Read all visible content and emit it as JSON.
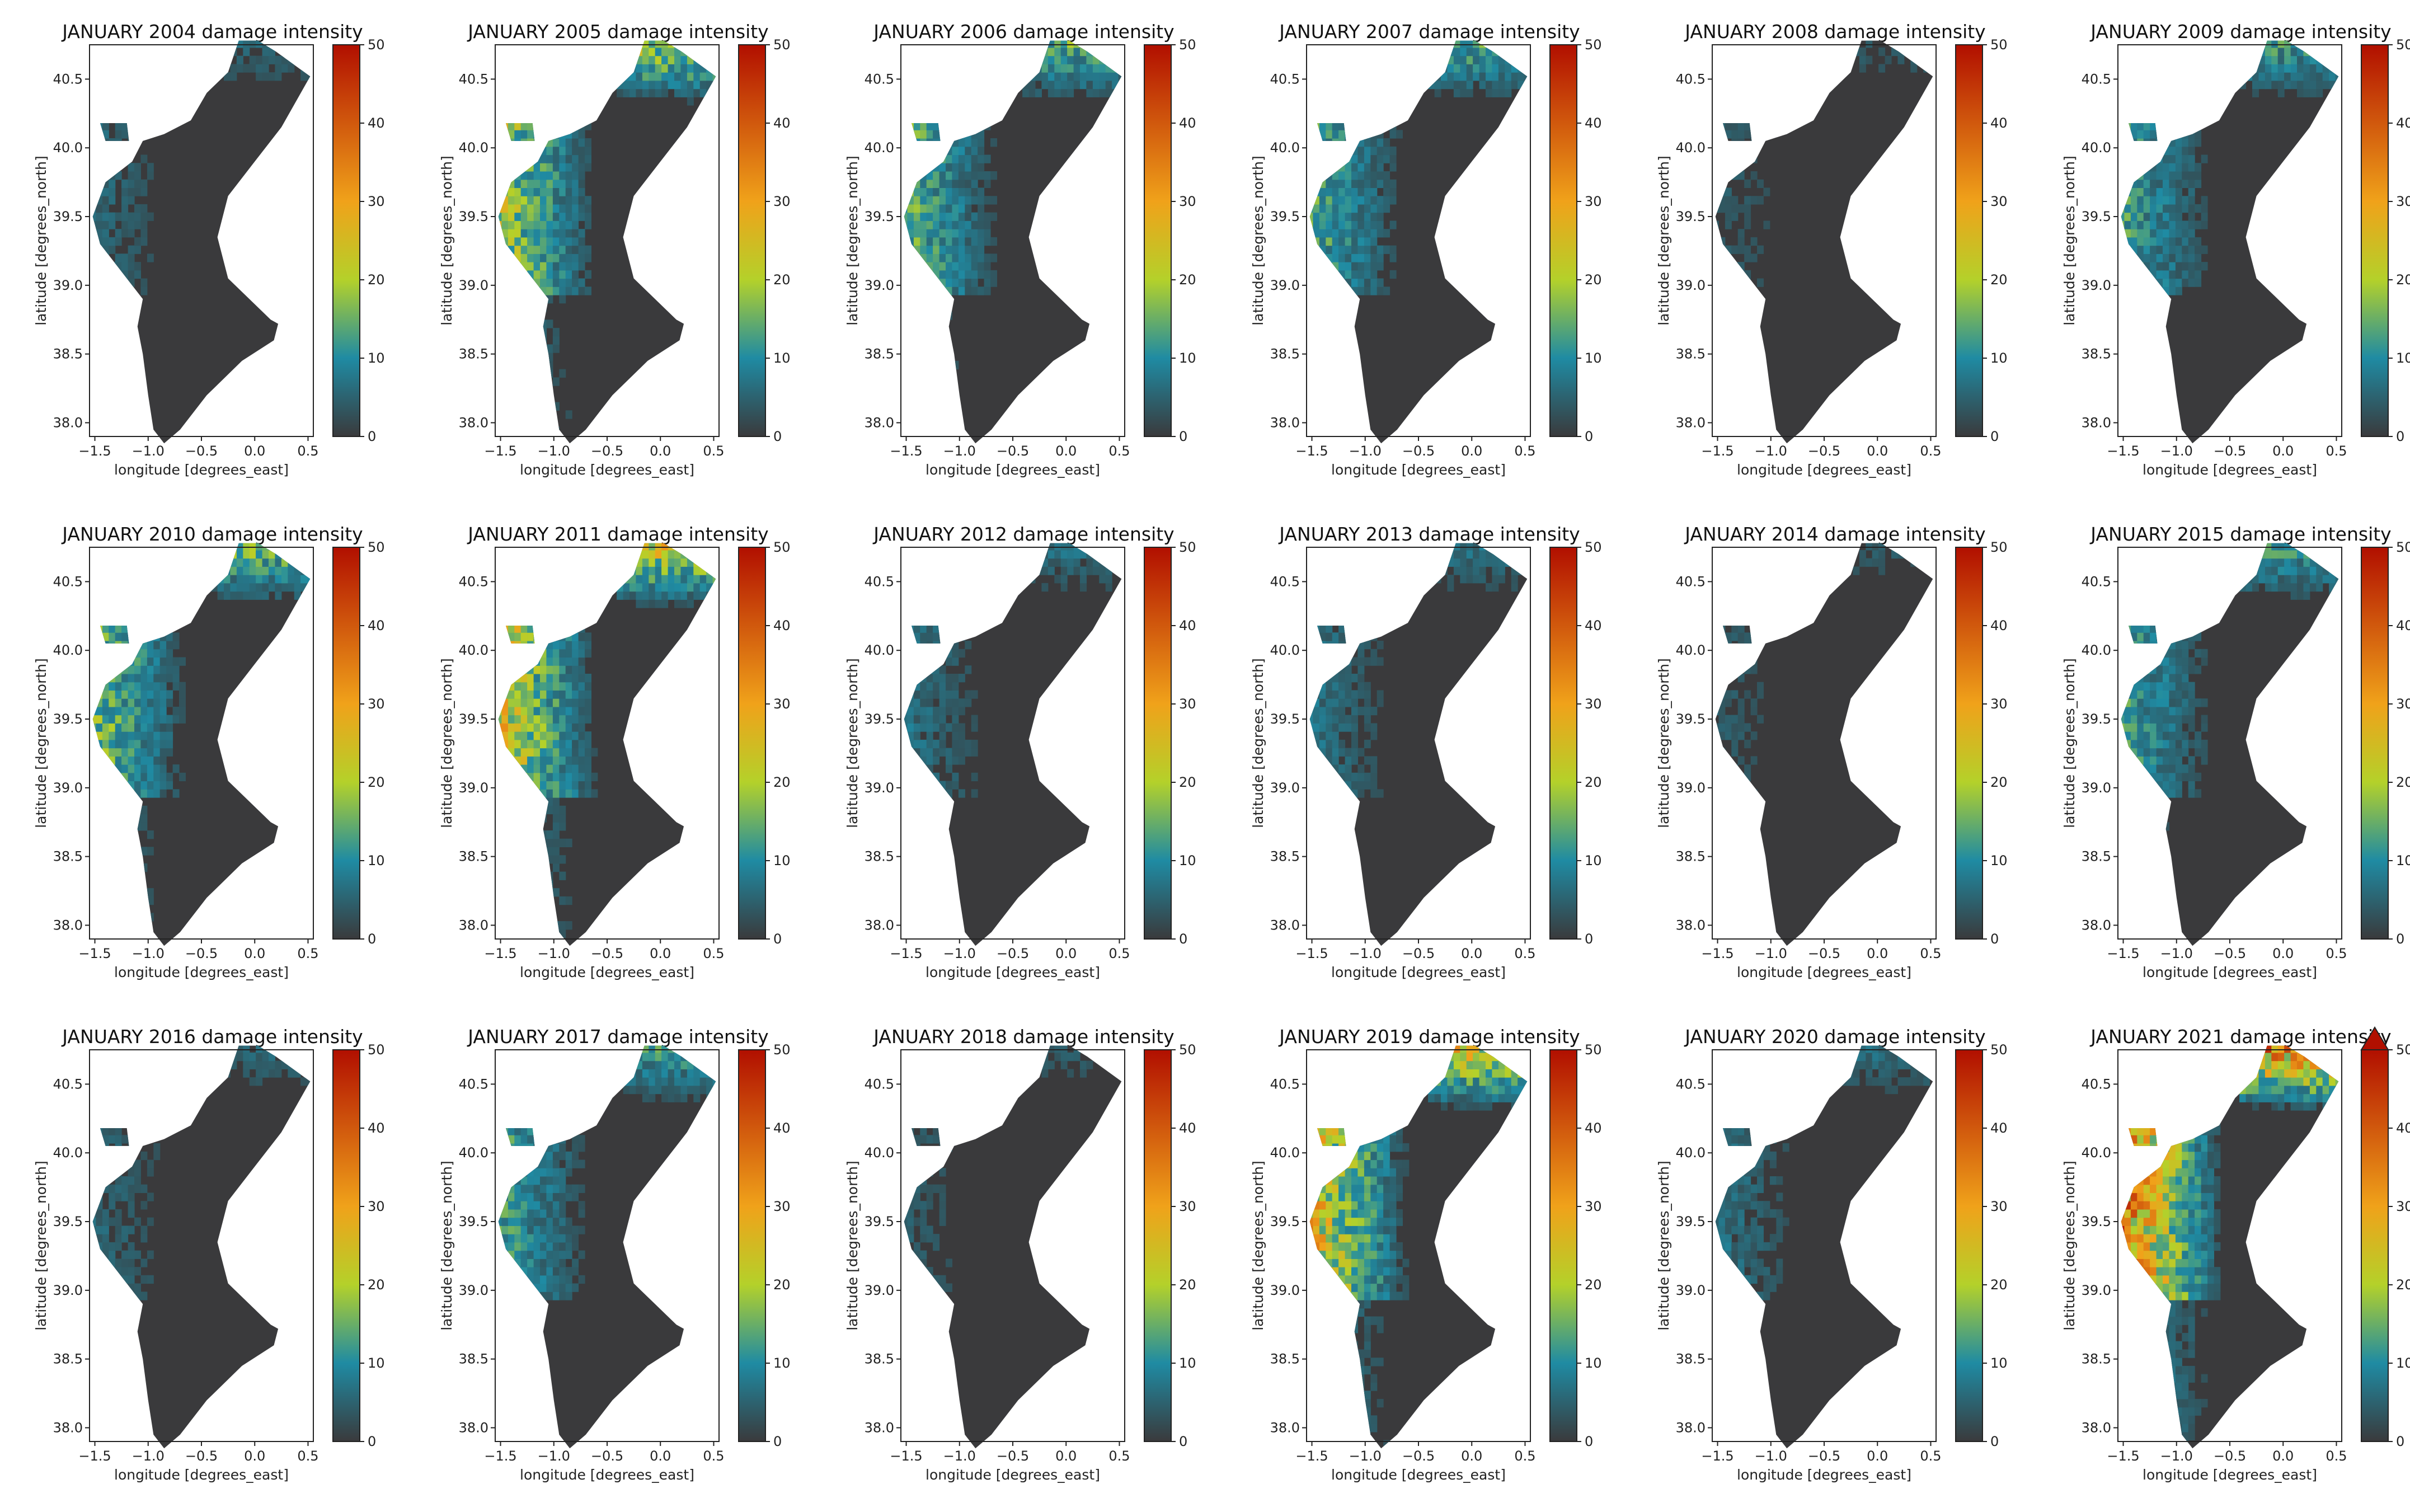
{
  "figure": {
    "panel_title_suffix": "damage intensity",
    "xlabel": "longitude [degrees_east]",
    "ylabel": "latitude [degrees_north]",
    "x_ticks": [
      "−1.5",
      "−1.0",
      "−0.5",
      "0.0",
      "0.5"
    ],
    "y_ticks": [
      "38.0",
      "38.5",
      "39.0",
      "39.5",
      "40.0",
      "40.5"
    ],
    "colorbar_ticks": [
      "0",
      "10",
      "20",
      "30",
      "40",
      "50"
    ]
  },
  "map_data": {
    "type": "choropleth-grid",
    "variable": "damage intensity",
    "month": "JANUARY",
    "xlim": [
      -1.55,
      0.55
    ],
    "ylim": [
      37.9,
      40.75
    ],
    "colorbar": {
      "min": 0,
      "max": 50,
      "stops": [
        "#3a3a3c",
        "#1f8ba3",
        "#b4d12a",
        "#f0a21a",
        "#b10f00"
      ]
    },
    "panels": [
      {
        "title": "JANUARY 2004 damage intensity",
        "year": 2004,
        "max_intensity": 8
      },
      {
        "title": "JANUARY 2005 damage intensity",
        "year": 2005,
        "max_intensity": 30
      },
      {
        "title": "JANUARY 2006 damage intensity",
        "year": 2006,
        "max_intensity": 22
      },
      {
        "title": "JANUARY 2007 damage intensity",
        "year": 2007,
        "max_intensity": 20
      },
      {
        "title": "JANUARY 2008 damage intensity",
        "year": 2008,
        "max_intensity": 6
      },
      {
        "title": "JANUARY 2009 damage intensity",
        "year": 2009,
        "max_intensity": 18
      },
      {
        "title": "JANUARY 2010 damage intensity",
        "year": 2010,
        "max_intensity": 25
      },
      {
        "title": "JANUARY 2011 damage intensity",
        "year": 2011,
        "max_intensity": 35
      },
      {
        "title": "JANUARY 2012 damage intensity",
        "year": 2012,
        "max_intensity": 10
      },
      {
        "title": "JANUARY 2013 damage intensity",
        "year": 2013,
        "max_intensity": 10
      },
      {
        "title": "JANUARY 2014 damage intensity",
        "year": 2014,
        "max_intensity": 6
      },
      {
        "title": "JANUARY 2015 damage intensity",
        "year": 2015,
        "max_intensity": 18
      },
      {
        "title": "JANUARY 2016 damage intensity",
        "year": 2016,
        "max_intensity": 8
      },
      {
        "title": "JANUARY 2017 damage intensity",
        "year": 2017,
        "max_intensity": 18
      },
      {
        "title": "JANUARY 2018 damage intensity",
        "year": 2018,
        "max_intensity": 6
      },
      {
        "title": "JANUARY 2019 damage intensity",
        "year": 2019,
        "max_intensity": 38
      },
      {
        "title": "JANUARY 2020 damage intensity",
        "year": 2020,
        "max_intensity": 10
      },
      {
        "title": "JANUARY 2021 damage intensity",
        "year": 2021,
        "max_intensity": 50,
        "colorbar_extend": "max"
      }
    ]
  }
}
